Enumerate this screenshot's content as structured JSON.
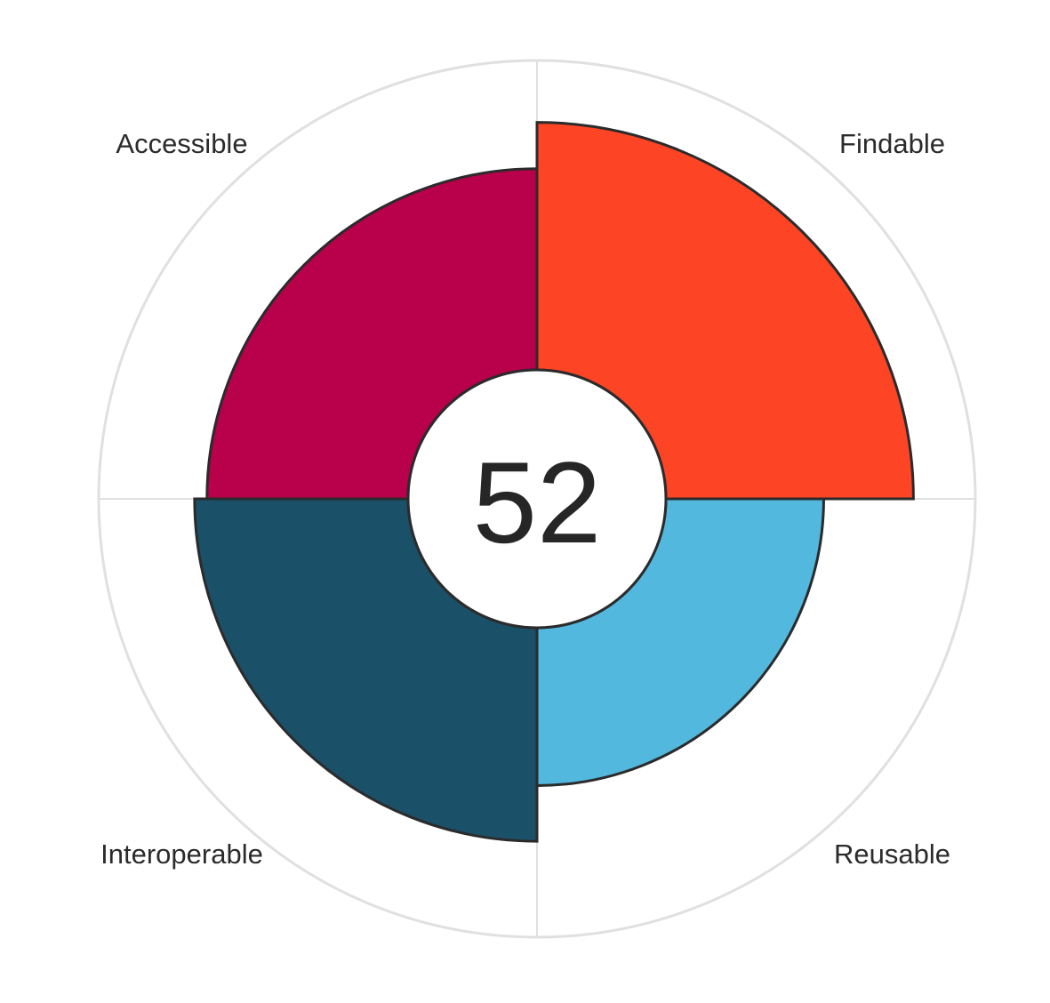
{
  "chart_data": {
    "type": "polar-bar",
    "title": "",
    "score": "52",
    "max": 100,
    "grid": true,
    "categories": [
      {
        "name": "Findable",
        "value": 80,
        "color": "#FD4425"
      },
      {
        "name": "Reusable",
        "value": 51,
        "color": "#52B8DE"
      },
      {
        "name": "Interoperable",
        "value": 69,
        "color": "#1A5068"
      },
      {
        "name": "Accessible",
        "value": 65,
        "color": "#B8004B"
      }
    ],
    "outline_color": "#2b2b2b",
    "grid_color": "#e0e0e0"
  }
}
